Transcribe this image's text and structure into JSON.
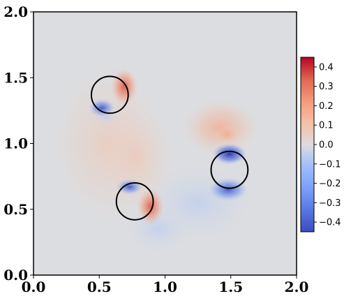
{
  "chart_data": {
    "type": "heatmap",
    "title": "",
    "xlabel": "",
    "ylabel": "",
    "xlim": [
      0.0,
      2.0
    ],
    "ylim": [
      0.0,
      2.0
    ],
    "x_ticks": [
      "0.0",
      "0.5",
      "1.0",
      "1.5",
      "2.0"
    ],
    "y_ticks": [
      "0.0",
      "0.5",
      "1.0",
      "1.5",
      "2.0"
    ],
    "colormap": "coolwarm",
    "colorbar": {
      "min": -0.45,
      "max": 0.45,
      "ticks": [
        "0.4",
        "0.3",
        "0.2",
        "0.1",
        "0.0",
        "−0.1",
        "−0.2",
        "−0.3",
        "−0.4"
      ],
      "tick_values": [
        0.4,
        0.3,
        0.2,
        0.1,
        0.0,
        -0.1,
        -0.2,
        -0.3,
        -0.4
      ]
    },
    "circles": [
      {
        "cx": 0.58,
        "cy": 1.37,
        "r": 0.14
      },
      {
        "cx": 0.77,
        "cy": 0.56,
        "r": 0.14
      },
      {
        "cx": 1.49,
        "cy": 0.8,
        "r": 0.14
      }
    ],
    "field_features": [
      {
        "x": 0.58,
        "y": 1.37,
        "peak_side": "upper-right",
        "amplitude": 0.3
      },
      {
        "x": 0.77,
        "y": 0.56,
        "peak_side": "lower-right",
        "amplitude": 0.3
      },
      {
        "x": 1.49,
        "y": 0.8,
        "peak_side": "bottom",
        "amplitude": 0.45
      },
      {
        "x": 1.45,
        "y": 1.05,
        "peak_side": "above",
        "amplitude": 0.15
      }
    ],
    "grid": false,
    "circle_color": "#000000"
  }
}
